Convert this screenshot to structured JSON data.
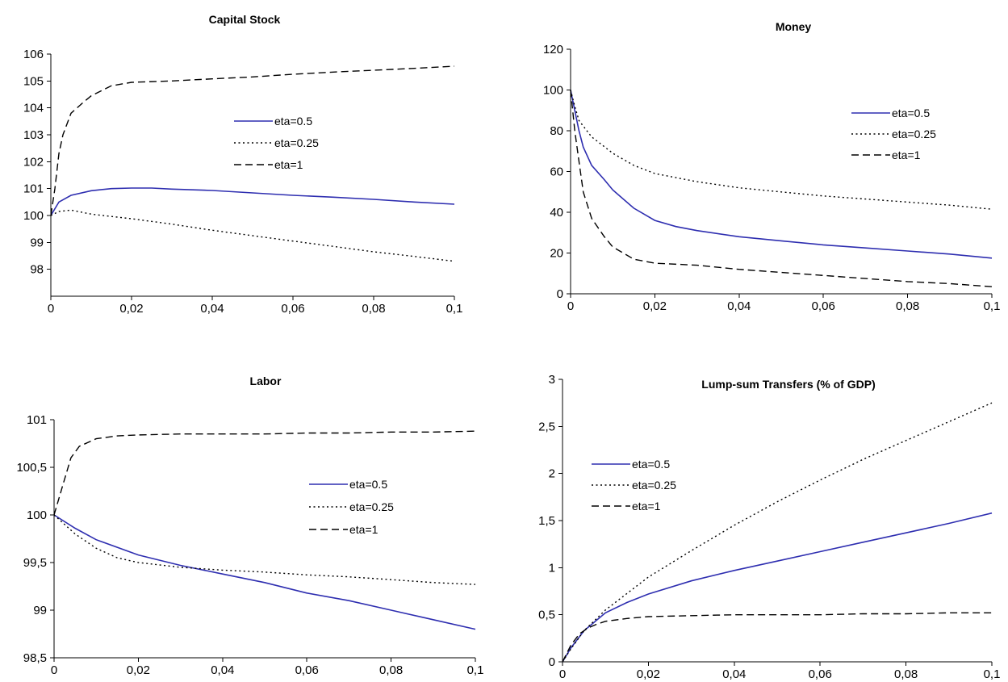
{
  "colors": {
    "eta_0_5": "#2e2eb0",
    "eta_0_25": "#000000",
    "eta_1": "#000000"
  },
  "chart_data": [
    {
      "type": "line",
      "title": "Capital Stock",
      "xlim": [
        0,
        0.1
      ],
      "ylim": [
        98,
        106
      ],
      "y_axis_min_drawn": 97,
      "x_ticks": [
        0,
        0.02,
        0.04,
        0.06,
        0.08,
        0.1
      ],
      "x_tick_labels": [
        "0",
        "0,02",
        "0,04",
        "0,06",
        "0,08",
        "0,1"
      ],
      "y_ticks": [
        98,
        99,
        100,
        101,
        102,
        103,
        104,
        105,
        106
      ],
      "y_tick_labels": [
        "98",
        "99",
        "100",
        "101",
        "102",
        "103",
        "104",
        "105",
        "106"
      ],
      "grid": false,
      "legend_placement": "center-right",
      "series": [
        {
          "name": "eta=0.5",
          "style": "solid",
          "x": [
            0,
            0.002,
            0.005,
            0.01,
            0.015,
            0.02,
            0.025,
            0.03,
            0.04,
            0.05,
            0.06,
            0.07,
            0.08,
            0.09,
            0.1
          ],
          "y": [
            100.0,
            100.5,
            100.75,
            100.92,
            101.0,
            101.02,
            101.02,
            100.98,
            100.93,
            100.84,
            100.75,
            100.68,
            100.6,
            100.5,
            100.42
          ]
        },
        {
          "name": "eta=0.25",
          "style": "dotted",
          "x": [
            0,
            0.002,
            0.005,
            0.01,
            0.02,
            0.03,
            0.04,
            0.05,
            0.06,
            0.07,
            0.08,
            0.09,
            0.1
          ],
          "y": [
            100.0,
            100.15,
            100.2,
            100.05,
            99.88,
            99.68,
            99.45,
            99.25,
            99.05,
            98.85,
            98.65,
            98.48,
            98.3
          ]
        },
        {
          "name": "eta=1",
          "style": "dashed",
          "x": [
            0,
            0.001,
            0.002,
            0.003,
            0.005,
            0.008,
            0.01,
            0.015,
            0.02,
            0.03,
            0.04,
            0.05,
            0.06,
            0.07,
            0.08,
            0.09,
            0.1
          ],
          "y": [
            100.0,
            101.0,
            102.3,
            103.0,
            103.8,
            104.2,
            104.45,
            104.82,
            104.95,
            105.0,
            105.08,
            105.15,
            105.25,
            105.33,
            105.4,
            105.47,
            105.55
          ]
        }
      ]
    },
    {
      "type": "line",
      "title": "Money",
      "xlim": [
        0,
        0.1
      ],
      "ylim": [
        0,
        120
      ],
      "x_ticks": [
        0,
        0.02,
        0.04,
        0.06,
        0.08,
        0.1
      ],
      "x_tick_labels": [
        "0",
        "0,02",
        "0,04",
        "0,06",
        "0,08",
        "0,1"
      ],
      "y_ticks": [
        0,
        20,
        40,
        60,
        80,
        100,
        120
      ],
      "y_tick_labels": [
        "0",
        "20",
        "40",
        "60",
        "80",
        "100",
        "120"
      ],
      "grid": false,
      "legend_placement": "top-right",
      "series": [
        {
          "name": "eta=0.5",
          "style": "solid",
          "x": [
            0,
            0.001,
            0.002,
            0.003,
            0.005,
            0.008,
            0.01,
            0.015,
            0.02,
            0.025,
            0.03,
            0.04,
            0.05,
            0.06,
            0.07,
            0.08,
            0.09,
            0.1
          ],
          "y": [
            100,
            90,
            80,
            72,
            63,
            56,
            51,
            42,
            36,
            33,
            31,
            28,
            26,
            24,
            22.5,
            21,
            19.5,
            17.5
          ]
        },
        {
          "name": "eta=0.25",
          "style": "dotted",
          "x": [
            0,
            0.001,
            0.002,
            0.005,
            0.01,
            0.015,
            0.02,
            0.03,
            0.04,
            0.05,
            0.06,
            0.07,
            0.08,
            0.09,
            0.1
          ],
          "y": [
            100,
            92,
            85,
            77,
            69,
            63,
            59,
            55,
            52,
            50,
            48,
            46.5,
            45,
            43.5,
            41.5
          ]
        },
        {
          "name": "eta=1",
          "style": "dashed",
          "x": [
            0,
            0.001,
            0.002,
            0.003,
            0.005,
            0.008,
            0.01,
            0.015,
            0.02,
            0.03,
            0.04,
            0.05,
            0.06,
            0.07,
            0.08,
            0.09,
            0.1
          ],
          "y": [
            100,
            80,
            65,
            50,
            37,
            28,
            23,
            17,
            15,
            14,
            12,
            10.5,
            9,
            7.5,
            6,
            5,
            3.5
          ]
        }
      ]
    },
    {
      "type": "line",
      "title": "Labor",
      "xlim": [
        0,
        0.1
      ],
      "ylim": [
        98.5,
        101
      ],
      "x_ticks": [
        0,
        0.02,
        0.04,
        0.06,
        0.08,
        0.1
      ],
      "x_tick_labels": [
        "0",
        "0,02",
        "0,04",
        "0,06",
        "0,08",
        "0,1"
      ],
      "y_ticks": [
        98.5,
        99,
        99.5,
        100,
        100.5,
        101
      ],
      "y_tick_labels": [
        "98,5",
        "99",
        "99,5",
        "100",
        "100,5",
        "101"
      ],
      "grid": false,
      "legend_placement": "center-right",
      "series": [
        {
          "name": "eta=0.5",
          "style": "solid",
          "x": [
            0,
            0.005,
            0.01,
            0.02,
            0.03,
            0.04,
            0.05,
            0.06,
            0.07,
            0.08,
            0.09,
            0.1
          ],
          "y": [
            100.0,
            99.86,
            99.74,
            99.58,
            99.47,
            99.38,
            99.29,
            99.18,
            99.1,
            99.0,
            98.9,
            98.8
          ]
        },
        {
          "name": "eta=0.25",
          "style": "dotted",
          "x": [
            0,
            0.005,
            0.01,
            0.015,
            0.02,
            0.03,
            0.04,
            0.05,
            0.06,
            0.07,
            0.08,
            0.09,
            0.1
          ],
          "y": [
            100.0,
            99.8,
            99.65,
            99.55,
            99.5,
            99.45,
            99.42,
            99.4,
            99.37,
            99.35,
            99.32,
            99.29,
            99.27
          ]
        },
        {
          "name": "eta=1",
          "style": "dashed",
          "x": [
            0,
            0.002,
            0.004,
            0.006,
            0.01,
            0.015,
            0.02,
            0.03,
            0.04,
            0.05,
            0.06,
            0.07,
            0.08,
            0.09,
            0.1
          ],
          "y": [
            100.0,
            100.3,
            100.6,
            100.72,
            100.8,
            100.83,
            100.84,
            100.85,
            100.85,
            100.85,
            100.86,
            100.86,
            100.87,
            100.87,
            100.88
          ]
        }
      ]
    },
    {
      "type": "line",
      "title": "Lump-sum Transfers (% of GDP)",
      "xlim": [
        0,
        0.1
      ],
      "ylim": [
        0,
        3
      ],
      "x_ticks": [
        0,
        0.02,
        0.04,
        0.06,
        0.08,
        0.1
      ],
      "x_tick_labels": [
        "0",
        "0,02",
        "0,04",
        "0,06",
        "0,08",
        "0,1"
      ],
      "y_ticks": [
        0,
        0.5,
        1,
        1.5,
        2,
        2.5,
        3
      ],
      "y_tick_labels": [
        "0",
        "0,5",
        "1",
        "1,5",
        "2",
        "2,5",
        "3"
      ],
      "grid": false,
      "legend_placement": "upper-left",
      "series": [
        {
          "name": "eta=0.5",
          "style": "solid",
          "x": [
            0,
            0.002,
            0.005,
            0.01,
            0.015,
            0.02,
            0.03,
            0.04,
            0.05,
            0.06,
            0.07,
            0.08,
            0.09,
            0.1
          ],
          "y": [
            0,
            0.15,
            0.33,
            0.52,
            0.63,
            0.72,
            0.86,
            0.97,
            1.07,
            1.17,
            1.27,
            1.37,
            1.47,
            1.58
          ]
        },
        {
          "name": "eta=0.25",
          "style": "dotted",
          "x": [
            0,
            0.002,
            0.005,
            0.01,
            0.02,
            0.03,
            0.04,
            0.05,
            0.06,
            0.07,
            0.08,
            0.09,
            0.1
          ],
          "y": [
            0,
            0.14,
            0.33,
            0.55,
            0.9,
            1.18,
            1.45,
            1.7,
            1.93,
            2.15,
            2.35,
            2.55,
            2.75
          ]
        },
        {
          "name": "eta=1",
          "style": "dashed",
          "x": [
            0,
            0.002,
            0.004,
            0.006,
            0.008,
            0.01,
            0.015,
            0.02,
            0.03,
            0.04,
            0.05,
            0.06,
            0.07,
            0.08,
            0.09,
            0.1
          ],
          "y": [
            0,
            0.18,
            0.3,
            0.36,
            0.4,
            0.43,
            0.46,
            0.48,
            0.49,
            0.5,
            0.5,
            0.5,
            0.51,
            0.51,
            0.52,
            0.52
          ]
        }
      ]
    }
  ]
}
